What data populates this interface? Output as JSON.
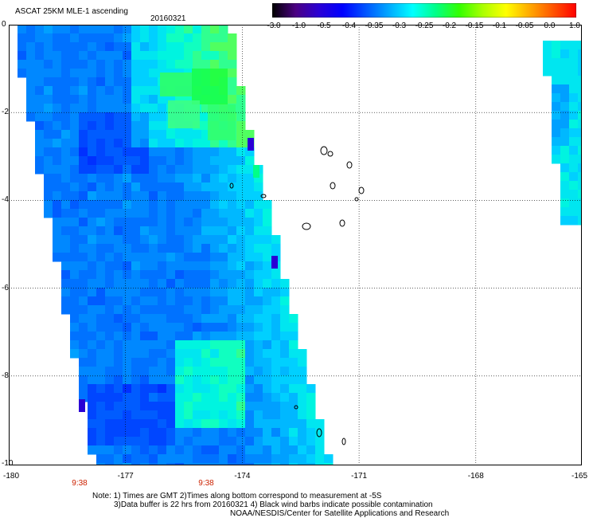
{
  "header": {
    "title": "ASCAT 25KM MLE-1 ascending",
    "date": "20160321"
  },
  "colorbar": {
    "labels": [
      "-3.0",
      "-1.0",
      "-0.5",
      "-0.4",
      "-0.35",
      "-0.3",
      "-0.25",
      "-0.2",
      "-0.15",
      "-0.1",
      "-0.05",
      "0.0",
      "1.0"
    ],
    "colors": [
      "#000000",
      "#4b0082",
      "#2a00d5",
      "#0000ff",
      "#0055ff",
      "#00aaff",
      "#00ffff",
      "#00ff88",
      "#33ff00",
      "#aaff00",
      "#ffff00",
      "#ffaa00",
      "#ff5500",
      "#ff0000"
    ]
  },
  "map": {
    "y_labels": [
      "0",
      "-2",
      "-4",
      "-6",
      "-8",
      "-10"
    ],
    "x_labels": [
      "-180",
      "-177",
      "-174",
      "-171",
      "-168",
      "-165"
    ],
    "time_labels": [
      "9:38",
      "9:38"
    ]
  },
  "notes": {
    "line1": "Note: 1) Times are GMT 2)Times along bottom correspond to measurement at -5S",
    "line2": "3)Data buffer is 22 hrs from 20160321 4) Black wind barbs indicate possible contamination",
    "line3": "NOAA/NESDIS/Center for Satellite Applications and Research"
  }
}
